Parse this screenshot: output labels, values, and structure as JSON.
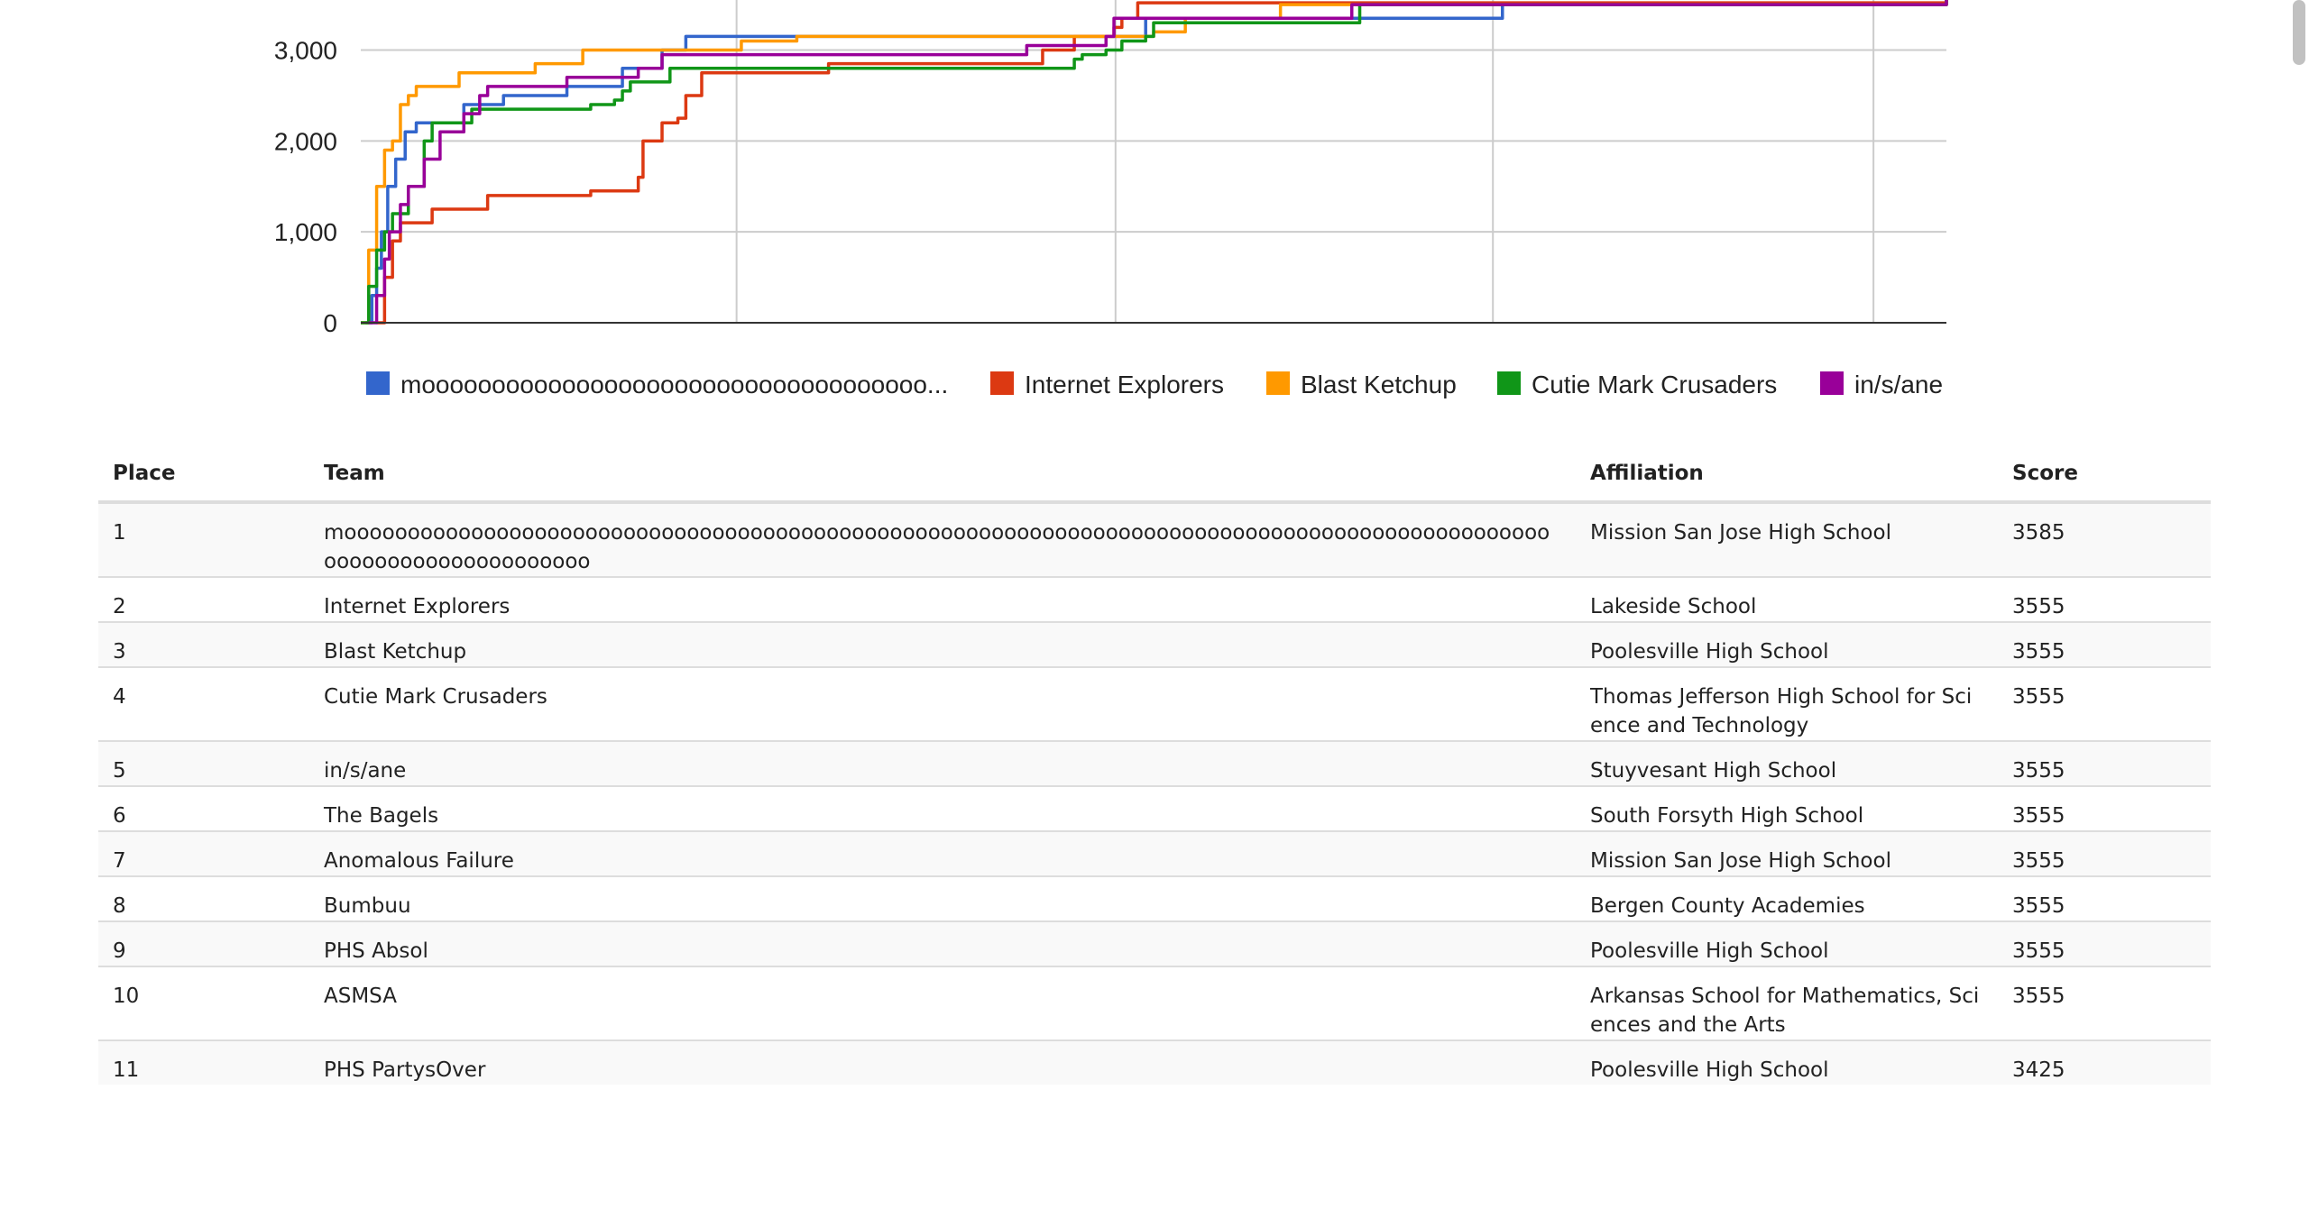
{
  "chart_data": {
    "type": "line",
    "y_ticks": [
      "0",
      "1,000",
      "2,000",
      "3,000"
    ],
    "ylim": [
      0,
      3650
    ],
    "xlim": [
      0,
      1000
    ],
    "x_gridlines": [
      237,
      476,
      714,
      954
    ],
    "grid": true,
    "legend_position": "bottom",
    "series": [
      {
        "name": "moooooooooooooooooooooooooooooooooooo...",
        "color": "#3366cc",
        "points": [
          [
            3,
            0
          ],
          [
            7,
            300
          ],
          [
            10,
            600
          ],
          [
            13,
            1000
          ],
          [
            17,
            1500
          ],
          [
            22,
            1800
          ],
          [
            28,
            2100
          ],
          [
            35,
            2200
          ],
          [
            60,
            2200
          ],
          [
            65,
            2400
          ],
          [
            90,
            2500
          ],
          [
            120,
            2500
          ],
          [
            130,
            2600
          ],
          [
            160,
            2600
          ],
          [
            165,
            2800
          ],
          [
            185,
            2800
          ],
          [
            190,
            3000
          ],
          [
            200,
            3000
          ],
          [
            205,
            3150
          ],
          [
            460,
            3150
          ],
          [
            480,
            3150
          ],
          [
            495,
            3350
          ],
          [
            620,
            3350
          ],
          [
            720,
            3500
          ],
          [
            1000,
            3585
          ]
        ]
      },
      {
        "name": "Internet Explorers",
        "color": "#dc3912",
        "points": [
          [
            10,
            0
          ],
          [
            15,
            500
          ],
          [
            20,
            900
          ],
          [
            25,
            1100
          ],
          [
            40,
            1100
          ],
          [
            45,
            1250
          ],
          [
            75,
            1250
          ],
          [
            80,
            1400
          ],
          [
            140,
            1400
          ],
          [
            145,
            1450
          ],
          [
            170,
            1450
          ],
          [
            175,
            1600
          ],
          [
            178,
            2000
          ],
          [
            185,
            2000
          ],
          [
            190,
            2200
          ],
          [
            200,
            2250
          ],
          [
            205,
            2500
          ],
          [
            210,
            2500
          ],
          [
            215,
            2750
          ],
          [
            290,
            2750
          ],
          [
            295,
            2850
          ],
          [
            420,
            2850
          ],
          [
            430,
            3000
          ],
          [
            445,
            3000
          ],
          [
            450,
            3150
          ],
          [
            460,
            3150
          ],
          [
            475,
            3250
          ],
          [
            480,
            3350
          ],
          [
            490,
            3520
          ],
          [
            1000,
            3555
          ]
        ]
      },
      {
        "name": "Blast Ketchup",
        "color": "#ff9900",
        "points": [
          [
            0,
            0
          ],
          [
            5,
            800
          ],
          [
            10,
            1500
          ],
          [
            15,
            1900
          ],
          [
            20,
            2000
          ],
          [
            25,
            2400
          ],
          [
            30,
            2500
          ],
          [
            35,
            2600
          ],
          [
            60,
            2600
          ],
          [
            62,
            2750
          ],
          [
            105,
            2750
          ],
          [
            110,
            2850
          ],
          [
            135,
            2850
          ],
          [
            140,
            3000
          ],
          [
            220,
            3000
          ],
          [
            240,
            3100
          ],
          [
            275,
            3150
          ],
          [
            490,
            3150
          ],
          [
            500,
            3200
          ],
          [
            520,
            3350
          ],
          [
            580,
            3500
          ],
          [
            1000,
            3555
          ]
        ]
      },
      {
        "name": "Cutie Mark Crusaders",
        "color": "#109618",
        "points": [
          [
            0,
            0
          ],
          [
            5,
            400
          ],
          [
            10,
            800
          ],
          [
            15,
            1000
          ],
          [
            20,
            1200
          ],
          [
            30,
            1500
          ],
          [
            40,
            2000
          ],
          [
            45,
            2200
          ],
          [
            65,
            2200
          ],
          [
            70,
            2350
          ],
          [
            140,
            2350
          ],
          [
            145,
            2400
          ],
          [
            160,
            2450
          ],
          [
            165,
            2550
          ],
          [
            170,
            2650
          ],
          [
            190,
            2650
          ],
          [
            195,
            2800
          ],
          [
            445,
            2800
          ],
          [
            450,
            2900
          ],
          [
            455,
            2950
          ],
          [
            470,
            3000
          ],
          [
            480,
            3100
          ],
          [
            495,
            3150
          ],
          [
            500,
            3300
          ],
          [
            620,
            3300
          ],
          [
            630,
            3500
          ],
          [
            1000,
            3555
          ]
        ]
      },
      {
        "name": "in/s/ane",
        "color": "#990099",
        "points": [
          [
            5,
            0
          ],
          [
            10,
            300
          ],
          [
            15,
            700
          ],
          [
            18,
            1000
          ],
          [
            25,
            1300
          ],
          [
            30,
            1500
          ],
          [
            40,
            1800
          ],
          [
            50,
            2100
          ],
          [
            65,
            2300
          ],
          [
            75,
            2500
          ],
          [
            80,
            2600
          ],
          [
            125,
            2600
          ],
          [
            130,
            2700
          ],
          [
            170,
            2700
          ],
          [
            175,
            2800
          ],
          [
            185,
            2800
          ],
          [
            190,
            2950
          ],
          [
            370,
            2950
          ],
          [
            420,
            3050
          ],
          [
            470,
            3150
          ],
          [
            475,
            3350
          ],
          [
            620,
            3350
          ],
          [
            625,
            3500
          ],
          [
            1000,
            3555
          ]
        ]
      }
    ]
  },
  "table": {
    "headers": {
      "place": "Place",
      "team": "Team",
      "affiliation": "Affiliation",
      "score": "Score"
    },
    "rows": [
      {
        "place": "1",
        "team": "moooooooooooooooooooooooooooooooooooooooooooooooooooooooooooooooooooooooooooooooooooooooooooooooooooooooooooooooooooo",
        "affiliation": "Mission San Jose High School",
        "score": "3585"
      },
      {
        "place": "2",
        "team": "Internet Explorers",
        "affiliation": "Lakeside School",
        "score": "3555"
      },
      {
        "place": "3",
        "team": "Blast Ketchup",
        "affiliation": "Poolesville High School",
        "score": "3555"
      },
      {
        "place": "4",
        "team": "Cutie Mark Crusaders",
        "affiliation": "Thomas Jefferson High School for Science and Technology",
        "score": "3555"
      },
      {
        "place": "5",
        "team": "in/s/ane",
        "affiliation": "Stuyvesant High School",
        "score": "3555"
      },
      {
        "place": "6",
        "team": "The Bagels",
        "affiliation": "South Forsyth High School",
        "score": "3555"
      },
      {
        "place": "7",
        "team": "Anomalous Failure",
        "affiliation": "Mission San Jose High School",
        "score": "3555"
      },
      {
        "place": "8",
        "team": "Bumbuu",
        "affiliation": "Bergen County Academies",
        "score": "3555"
      },
      {
        "place": "9",
        "team": "PHS Absol",
        "affiliation": "Poolesville High School",
        "score": "3555"
      },
      {
        "place": "10",
        "team": "ASMSA",
        "affiliation": "Arkansas School for Mathematics, Sciences and the Arts",
        "score": "3555"
      },
      {
        "place": "11",
        "team": "PHS PartysOver",
        "affiliation": "Poolesville High School",
        "score": "3425"
      }
    ]
  }
}
